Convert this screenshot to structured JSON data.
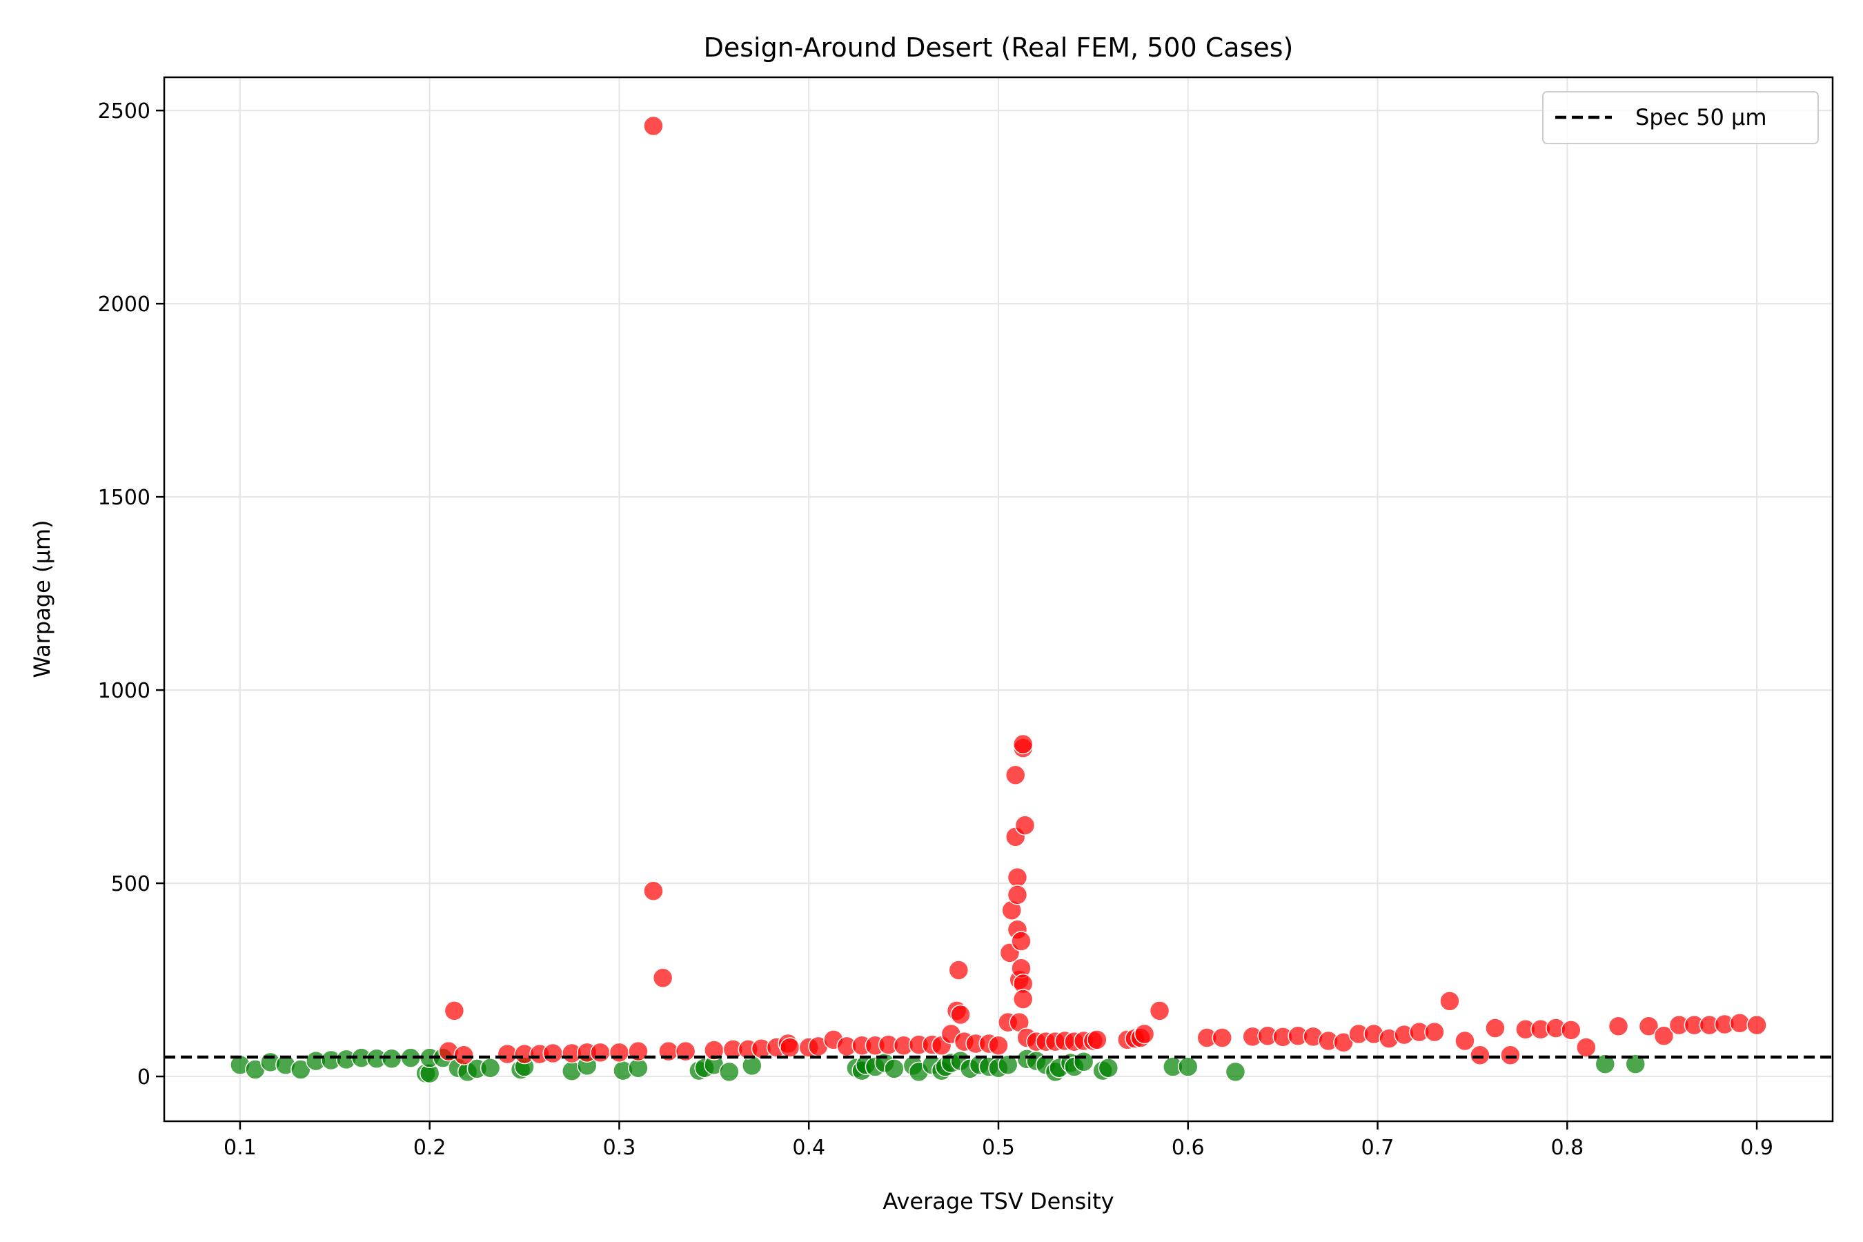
{
  "chart_data": {
    "type": "scatter",
    "title": "Design-Around Desert (Real FEM, 500 Cases)",
    "xlabel": "Average TSV Density",
    "ylabel": "Warpage (µm)",
    "xlim": [
      0.06,
      0.94
    ],
    "ylim": [
      -116,
      2586
    ],
    "xticks": [
      "0.1",
      "0.2",
      "0.3",
      "0.4",
      "0.5",
      "0.6",
      "0.7",
      "0.8",
      "0.9"
    ],
    "yticks": [
      "0",
      "500",
      "1000",
      "1500",
      "2000",
      "2500"
    ],
    "grid": true,
    "legend": {
      "placement": "top-right",
      "entries": [
        "Spec 50 µm"
      ]
    },
    "spec_line": {
      "y": 50,
      "label": "Spec 50 µm",
      "style": "dashed",
      "color": "#000000"
    },
    "colors": {
      "pass": "#008000",
      "fail": "#ff0000"
    },
    "points_pass": [
      [
        0.1,
        30
      ],
      [
        0.108,
        18
      ],
      [
        0.116,
        37
      ],
      [
        0.124,
        30
      ],
      [
        0.132,
        18
      ],
      [
        0.14,
        40
      ],
      [
        0.148,
        42
      ],
      [
        0.156,
        44
      ],
      [
        0.164,
        48
      ],
      [
        0.172,
        46
      ],
      [
        0.18,
        46
      ],
      [
        0.19,
        48
      ],
      [
        0.198,
        8
      ],
      [
        0.2,
        8
      ],
      [
        0.2,
        48
      ],
      [
        0.207,
        48
      ],
      [
        0.215,
        22
      ],
      [
        0.22,
        12
      ],
      [
        0.225,
        20
      ],
      [
        0.232,
        22
      ],
      [
        0.248,
        18
      ],
      [
        0.25,
        25
      ],
      [
        0.275,
        14
      ],
      [
        0.283,
        28
      ],
      [
        0.302,
        15
      ],
      [
        0.31,
        22
      ],
      [
        0.342,
        15
      ],
      [
        0.345,
        22
      ],
      [
        0.35,
        30
      ],
      [
        0.358,
        12
      ],
      [
        0.37,
        28
      ],
      [
        0.425,
        22
      ],
      [
        0.428,
        15
      ],
      [
        0.43,
        30
      ],
      [
        0.435,
        25
      ],
      [
        0.44,
        35
      ],
      [
        0.445,
        20
      ],
      [
        0.455,
        28
      ],
      [
        0.458,
        12
      ],
      [
        0.465,
        30
      ],
      [
        0.47,
        15
      ],
      [
        0.472,
        25
      ],
      [
        0.475,
        35
      ],
      [
        0.48,
        40
      ],
      [
        0.485,
        20
      ],
      [
        0.49,
        30
      ],
      [
        0.495,
        25
      ],
      [
        0.5,
        22
      ],
      [
        0.505,
        30
      ],
      [
        0.515,
        45
      ],
      [
        0.52,
        40
      ],
      [
        0.525,
        30
      ],
      [
        0.53,
        12
      ],
      [
        0.532,
        22
      ],
      [
        0.538,
        35
      ],
      [
        0.54,
        25
      ],
      [
        0.545,
        38
      ],
      [
        0.555,
        15
      ],
      [
        0.558,
        22
      ],
      [
        0.592,
        25
      ],
      [
        0.6,
        25
      ],
      [
        0.625,
        12
      ],
      [
        0.82,
        32
      ],
      [
        0.836,
        32
      ]
    ],
    "points_fail": [
      [
        0.21,
        65
      ],
      [
        0.213,
        170
      ],
      [
        0.218,
        55
      ],
      [
        0.241,
        58
      ],
      [
        0.25,
        58
      ],
      [
        0.258,
        58
      ],
      [
        0.265,
        60
      ],
      [
        0.275,
        60
      ],
      [
        0.283,
        62
      ],
      [
        0.29,
        62
      ],
      [
        0.3,
        62
      ],
      [
        0.31,
        65
      ],
      [
        0.318,
        2460
      ],
      [
        0.318,
        480
      ],
      [
        0.323,
        255
      ],
      [
        0.326,
        65
      ],
      [
        0.335,
        65
      ],
      [
        0.35,
        68
      ],
      [
        0.36,
        70
      ],
      [
        0.368,
        70
      ],
      [
        0.375,
        72
      ],
      [
        0.383,
        75
      ],
      [
        0.389,
        85
      ],
      [
        0.39,
        75
      ],
      [
        0.4,
        75
      ],
      [
        0.405,
        78
      ],
      [
        0.413,
        95
      ],
      [
        0.42,
        78
      ],
      [
        0.428,
        80
      ],
      [
        0.435,
        80
      ],
      [
        0.442,
        82
      ],
      [
        0.45,
        80
      ],
      [
        0.458,
        82
      ],
      [
        0.465,
        82
      ],
      [
        0.47,
        80
      ],
      [
        0.475,
        110
      ],
      [
        0.478,
        170
      ],
      [
        0.479,
        275
      ],
      [
        0.48,
        160
      ],
      [
        0.482,
        90
      ],
      [
        0.488,
        85
      ],
      [
        0.495,
        85
      ],
      [
        0.5,
        80
      ],
      [
        0.505,
        140
      ],
      [
        0.506,
        320
      ],
      [
        0.507,
        430
      ],
      [
        0.509,
        780
      ],
      [
        0.509,
        620
      ],
      [
        0.51,
        515
      ],
      [
        0.51,
        470
      ],
      [
        0.51,
        380
      ],
      [
        0.511,
        140
      ],
      [
        0.511,
        250
      ],
      [
        0.512,
        350
      ],
      [
        0.512,
        280
      ],
      [
        0.513,
        240
      ],
      [
        0.513,
        200
      ],
      [
        0.513,
        850
      ],
      [
        0.513,
        860
      ],
      [
        0.514,
        650
      ],
      [
        0.515,
        100
      ],
      [
        0.52,
        90
      ],
      [
        0.525,
        90
      ],
      [
        0.53,
        90
      ],
      [
        0.535,
        92
      ],
      [
        0.54,
        90
      ],
      [
        0.545,
        92
      ],
      [
        0.55,
        92
      ],
      [
        0.552,
        95
      ],
      [
        0.568,
        95
      ],
      [
        0.572,
        98
      ],
      [
        0.575,
        100
      ],
      [
        0.577,
        110
      ],
      [
        0.585,
        170
      ],
      [
        0.61,
        100
      ],
      [
        0.618,
        100
      ],
      [
        0.634,
        103
      ],
      [
        0.642,
        105
      ],
      [
        0.65,
        102
      ],
      [
        0.658,
        105
      ],
      [
        0.666,
        103
      ],
      [
        0.674,
        92
      ],
      [
        0.682,
        88
      ],
      [
        0.69,
        110
      ],
      [
        0.698,
        110
      ],
      [
        0.706,
        98
      ],
      [
        0.714,
        108
      ],
      [
        0.722,
        115
      ],
      [
        0.73,
        115
      ],
      [
        0.738,
        195
      ],
      [
        0.746,
        92
      ],
      [
        0.754,
        55
      ],
      [
        0.762,
        125
      ],
      [
        0.77,
        55
      ],
      [
        0.778,
        122
      ],
      [
        0.786,
        122
      ],
      [
        0.794,
        125
      ],
      [
        0.802,
        120
      ],
      [
        0.81,
        75
      ],
      [
        0.827,
        130
      ],
      [
        0.843,
        130
      ],
      [
        0.851,
        105
      ],
      [
        0.859,
        133
      ],
      [
        0.867,
        133
      ],
      [
        0.875,
        133
      ],
      [
        0.883,
        135
      ],
      [
        0.891,
        138
      ],
      [
        0.9,
        133
      ]
    ]
  }
}
